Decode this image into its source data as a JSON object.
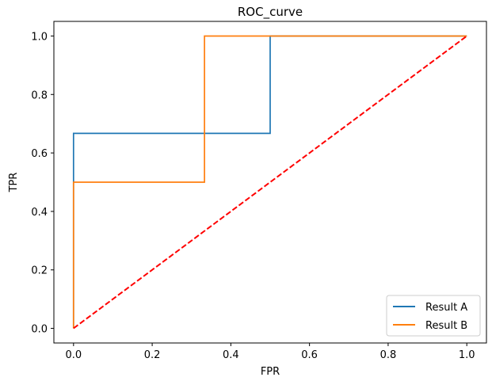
{
  "chart_data": {
    "type": "line",
    "title": "ROC_curve",
    "xlabel": "FPR",
    "ylabel": "TPR",
    "xlim": [
      -0.05,
      1.05
    ],
    "ylim": [
      -0.05,
      1.05
    ],
    "xticks": [
      "0.0",
      "0.2",
      "0.4",
      "0.6",
      "0.8",
      "1.0"
    ],
    "yticks": [
      "0.0",
      "0.2",
      "0.4",
      "0.6",
      "0.8",
      "1.0"
    ],
    "grid": false,
    "legend_position": "lower-right",
    "series": [
      {
        "name": "Result A",
        "color": "#1f77b4",
        "style": "solid",
        "x": [
          0.0,
          0.0,
          0.0,
          0.5,
          0.5,
          1.0
        ],
        "y": [
          0.0,
          0.5,
          0.667,
          0.667,
          1.0,
          1.0
        ]
      },
      {
        "name": "Result B",
        "color": "#ff7f0e",
        "style": "solid",
        "x": [
          0.0,
          0.0,
          0.333,
          0.333,
          1.0
        ],
        "y": [
          0.0,
          0.5,
          0.5,
          1.0,
          1.0
        ]
      },
      {
        "name": "",
        "color": "#ff0000",
        "style": "dashed",
        "x": [
          0.0,
          1.0
        ],
        "y": [
          0.0,
          1.0
        ]
      }
    ]
  }
}
